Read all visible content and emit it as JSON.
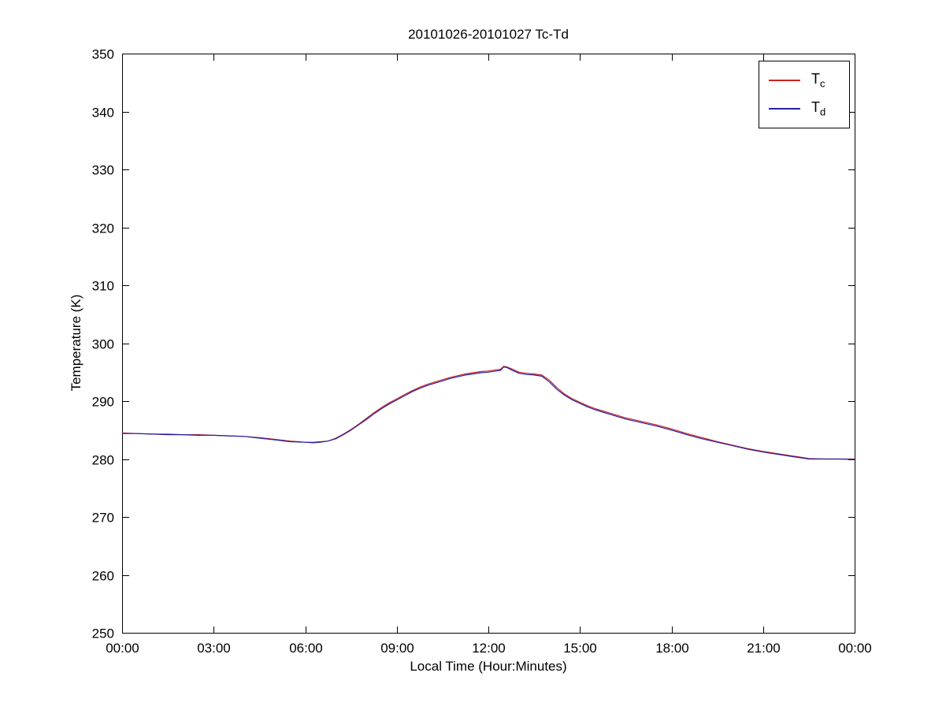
{
  "figure": {
    "background": "#ffffff",
    "axis_color": "#000000"
  },
  "chart_data": {
    "type": "line",
    "title": "20101026-20101027 Tc-Td",
    "xlabel": "Local Time (Hour:Minutes)",
    "ylabel": "Temperature (K)",
    "xlim": [
      0,
      24
    ],
    "ylim": [
      250,
      350
    ],
    "x_units": "hours_since_midnight",
    "x_ticks": [
      0,
      3,
      6,
      9,
      12,
      15,
      18,
      21,
      24
    ],
    "x_tick_labels": [
      "00:00",
      "03:00",
      "06:00",
      "09:00",
      "12:00",
      "15:00",
      "18:00",
      "21:00",
      "00:00"
    ],
    "y_ticks": [
      250,
      260,
      270,
      280,
      290,
      300,
      310,
      320,
      330,
      340,
      350
    ],
    "grid": false,
    "legend_position": "top-right",
    "x": [
      0,
      0.5,
      1,
      1.5,
      2,
      2.5,
      3,
      3.5,
      4,
      4.5,
      5,
      5.5,
      6,
      6.25,
      6.5,
      6.75,
      7,
      7.25,
      7.5,
      7.75,
      8,
      8.25,
      8.5,
      8.75,
      9,
      9.25,
      9.5,
      9.75,
      10,
      10.25,
      10.5,
      10.75,
      11,
      11.25,
      11.5,
      11.75,
      12,
      12.25,
      12.4,
      12.5,
      12.6,
      12.75,
      13,
      13.25,
      13.5,
      13.75,
      14,
      14.25,
      14.5,
      14.75,
      15,
      15.25,
      15.5,
      15.75,
      16,
      16.5,
      17,
      17.5,
      18,
      18.5,
      19,
      19.5,
      20,
      20.5,
      21,
      21.5,
      22,
      22.5,
      23,
      23.5,
      24
    ],
    "series": [
      {
        "name": "Tc",
        "label_main": "T",
        "label_sub": "c",
        "color": "#cc2222",
        "values": [
          284.5,
          284.4,
          284.3,
          284.3,
          284.2,
          284.2,
          284.1,
          284.0,
          283.9,
          283.7,
          283.4,
          283.1,
          282.9,
          282.9,
          283.0,
          283.1,
          283.6,
          284.3,
          285.1,
          286.0,
          287.0,
          288.0,
          288.9,
          289.7,
          290.4,
          291.1,
          291.8,
          292.4,
          292.9,
          293.3,
          293.7,
          294.1,
          294.4,
          294.7,
          294.9,
          295.1,
          295.2,
          295.4,
          295.5,
          296.0,
          295.9,
          295.6,
          295.0,
          294.8,
          294.7,
          294.5,
          293.6,
          292.3,
          291.2,
          290.4,
          289.8,
          289.2,
          288.7,
          288.3,
          287.9,
          287.1,
          286.5,
          285.9,
          285.2,
          284.4,
          283.7,
          283.0,
          282.4,
          281.8,
          281.3,
          280.9,
          280.5,
          280.1,
          280.0,
          280.0,
          280.0
        ]
      },
      {
        "name": "Td",
        "label_main": "T",
        "label_sub": "d",
        "color": "#2222aa",
        "values": [
          284.4,
          284.4,
          284.3,
          284.2,
          284.2,
          284.1,
          284.1,
          284.0,
          283.9,
          283.6,
          283.3,
          283.0,
          282.9,
          282.8,
          282.9,
          283.1,
          283.5,
          284.2,
          285.0,
          285.9,
          286.8,
          287.8,
          288.7,
          289.5,
          290.2,
          290.9,
          291.6,
          292.2,
          292.7,
          293.1,
          293.5,
          293.9,
          294.2,
          294.5,
          294.7,
          294.9,
          295.0,
          295.2,
          295.3,
          295.9,
          295.8,
          295.4,
          294.8,
          294.6,
          294.5,
          294.3,
          293.3,
          292.0,
          291.0,
          290.2,
          289.6,
          289.0,
          288.5,
          288.1,
          287.7,
          286.9,
          286.3,
          285.7,
          285.0,
          284.2,
          283.5,
          282.9,
          282.3,
          281.7,
          281.2,
          280.8,
          280.4,
          280.0,
          280.0,
          280.0,
          279.9
        ]
      }
    ]
  }
}
